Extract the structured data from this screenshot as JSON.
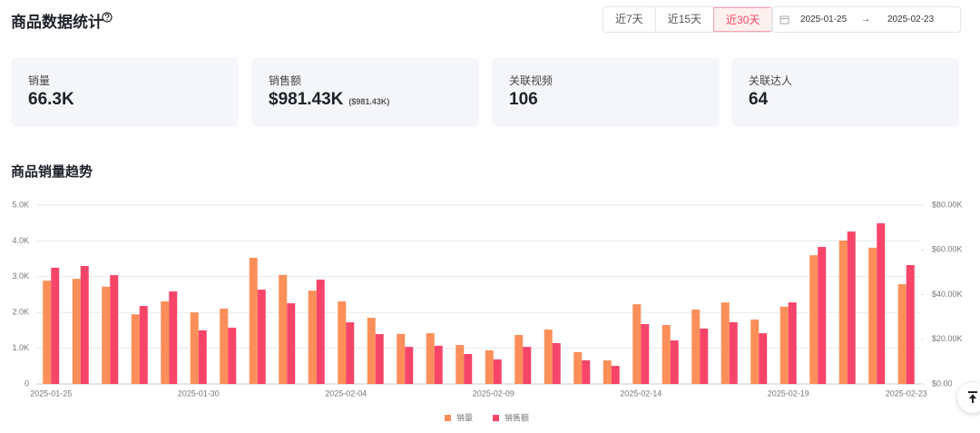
{
  "header": {
    "title": "商品数据统计",
    "ranges": [
      "近7天",
      "近15天",
      "近30天"
    ],
    "active_range": 2,
    "date_start": "2025-01-25",
    "separator": "→",
    "date_end": "2025-02-23"
  },
  "cards": [
    {
      "label": "销量",
      "value": "66.3K"
    },
    {
      "label": "销售额",
      "value": "$981.43K",
      "sub": "($981.43K)"
    },
    {
      "label": "关联视频",
      "value": "106"
    },
    {
      "label": "关联达人",
      "value": "64"
    }
  ],
  "section_title": "商品销量趋势",
  "chart_data": {
    "type": "bar",
    "categories": [
      "2025-01-25",
      null,
      null,
      null,
      null,
      "2025-01-30",
      null,
      null,
      null,
      null,
      "2025-02-04",
      null,
      null,
      null,
      null,
      "2025-02-09",
      null,
      null,
      null,
      null,
      "2025-02-14",
      null,
      null,
      null,
      null,
      "2025-02-19",
      null,
      null,
      null,
      "2025-02-23"
    ],
    "series": [
      {
        "name": "销量",
        "color": "#fc8f59",
        "values": [
          2890,
          2940,
          2720,
          1950,
          2310,
          2000,
          2110,
          3530,
          3050,
          2610,
          2310,
          1850,
          1400,
          1420,
          1090,
          940,
          1370,
          1520,
          890,
          660,
          2230,
          1650,
          2080,
          2280,
          1800,
          2160,
          3600,
          4010,
          3810,
          2790
        ]
      },
      {
        "name": "销售额",
        "color": "#f7456a",
        "axis": "y2",
        "values": [
          52000,
          52800,
          48700,
          34900,
          41400,
          24000,
          25200,
          42200,
          36100,
          46700,
          27600,
          22300,
          16600,
          17100,
          13400,
          11000,
          16600,
          18300,
          10600,
          8100,
          26800,
          19500,
          24800,
          27600,
          22700,
          36500,
          61300,
          68200,
          71900,
          53200
        ]
      }
    ],
    "ylim": [
      0,
      5000
    ],
    "yticks": [
      0,
      {
        "value": 1000,
        "label": "1.0K"
      },
      {
        "value": 2000,
        "label": "2.0K"
      },
      {
        "value": 3000,
        "label": "3.0K"
      },
      {
        "value": 4000,
        "label": "4.0K"
      },
      {
        "value": 5000,
        "label": "5.0K"
      }
    ],
    "y2lim": [
      0,
      80000
    ],
    "y2ticks": [
      {
        "value": 0,
        "label": "$0.00"
      },
      {
        "value": 20000,
        "label": "$20.00K"
      },
      {
        "value": 40000,
        "label": "$40.00K"
      },
      {
        "value": 60000,
        "label": "$60.00K"
      },
      {
        "value": 80000,
        "label": "$80.00K"
      }
    ],
    "grid": true,
    "legend": "bottom"
  }
}
